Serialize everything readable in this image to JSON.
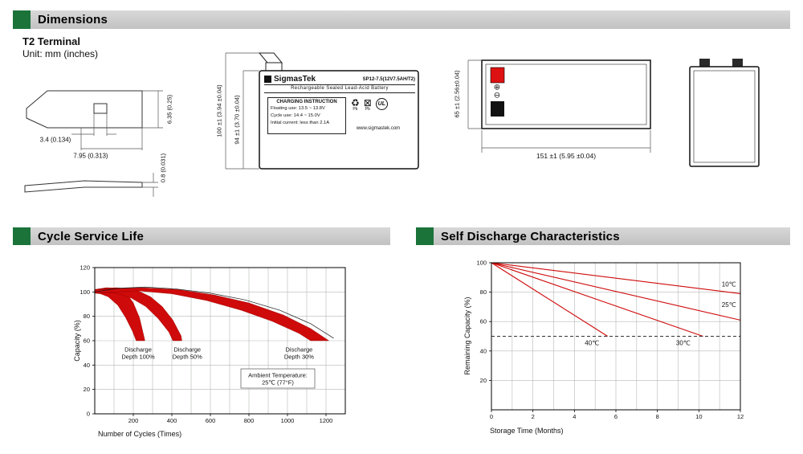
{
  "colors": {
    "accent_green": "#1b733a",
    "header_gray": "#c9c9c9",
    "chart_red": "#cf0a0a",
    "terminal_red": "#dd1111",
    "terminal_black": "#111111"
  },
  "headers": {
    "dimensions": "Dimensions",
    "cycle": "Cycle Service Life",
    "self_discharge": "Self Discharge Characteristics"
  },
  "terminal_drawing": {
    "subtitle": "T2 Terminal",
    "unit": "Unit: mm (inches)",
    "dim_hole": "3.4 (0.134)",
    "dim_tab_width": "7.95 (0.313)",
    "dim_tab_height": "6.35 (0.25)",
    "dim_thickness": "0.8 (0.031)"
  },
  "front_view": {
    "dim_total_height": "100 ±1 (3.94 ±0.04)",
    "dim_case_height": "94 ±1 (3.70 ±0.04)",
    "label": {
      "brand": "SigmasTek",
      "model": "SP12-7.5(12V7.5AH/T2)",
      "battery_type": "Rechargeable Sealed Lead-Acid Battery",
      "charging_title": "CHARGING INSTRUCTION",
      "charging_lines": [
        "Floating use: 13.5 ~ 13.8V",
        "Cycle use: 14.4 ~ 15.0V",
        "Initial current: less than 2.1A"
      ],
      "website": "www.sigmastek.com",
      "pb_label": "Pb",
      "ul_label": "UL",
      "recycle_icon": "♻",
      "bin_icon": "⊠"
    }
  },
  "top_view": {
    "dim_height": "65 ±1 (2.56±0.04)",
    "dim_width": "151 ±1 (5.95 ±0.04)",
    "positive_symbol": "⊕",
    "negative_symbol": "⊖"
  },
  "chart_data": [
    {
      "id": "cycle-life",
      "type": "area",
      "title": "Cycle Service Life",
      "xlabel": "Number of Cycles (Times)",
      "ylabel": "Capacity (%)",
      "xlim": [
        0,
        1300
      ],
      "ylim": [
        0,
        120
      ],
      "xticks": [
        200,
        400,
        600,
        800,
        1000,
        1200
      ],
      "yticks": [
        0,
        20,
        40,
        60,
        80,
        100,
        120
      ],
      "grid": {
        "x_step": 100,
        "y_step": 20
      },
      "band_color": "#cf0a0a",
      "bands": [
        {
          "name": "Discharge Depth 100%",
          "points": [
            [
              0,
              102
            ],
            [
              60,
              103.5
            ],
            [
              120,
              103
            ],
            [
              165,
              99
            ],
            [
              200,
              91
            ],
            [
              232,
              79
            ],
            [
              256,
              63
            ],
            [
              260,
              60
            ],
            [
              215,
              60
            ],
            [
              195,
              68
            ],
            [
              160,
              79
            ],
            [
              120,
              89
            ],
            [
              70,
              96
            ],
            [
              30,
              98.5
            ],
            [
              0,
              99
            ]
          ]
        },
        {
          "name": "Discharge Depth 50%",
          "points": [
            [
              0,
              102
            ],
            [
              110,
              103.5
            ],
            [
              210,
              102
            ],
            [
              290,
              96
            ],
            [
              350,
              88
            ],
            [
              405,
              77
            ],
            [
              448,
              64
            ],
            [
              452,
              60
            ],
            [
              405,
              60
            ],
            [
              385,
              67
            ],
            [
              330,
              78
            ],
            [
              265,
              88
            ],
            [
              190,
              95
            ],
            [
              100,
              99.5
            ],
            [
              0,
              99
            ]
          ]
        },
        {
          "name": "Discharge Depth 30%",
          "points": [
            [
              0,
              102
            ],
            [
              240,
              103.5
            ],
            [
              430,
              102
            ],
            [
              620,
              97.5
            ],
            [
              800,
              91
            ],
            [
              980,
              81
            ],
            [
              1120,
              70
            ],
            [
              1215,
              60
            ],
            [
              1120,
              60
            ],
            [
              1060,
              66
            ],
            [
              920,
              76
            ],
            [
              760,
              85
            ],
            [
              580,
              93
            ],
            [
              400,
              98.5
            ],
            [
              220,
              101
            ],
            [
              0,
              99
            ]
          ]
        }
      ],
      "envelope": [
        [
          0,
          100
        ],
        [
          120,
          103
        ],
        [
          260,
          104
        ],
        [
          420,
          102.5
        ],
        [
          600,
          99
        ],
        [
          780,
          93.5
        ],
        [
          960,
          85
        ],
        [
          1120,
          74
        ],
        [
          1240,
          62
        ]
      ],
      "annotations": [
        {
          "text_lines": [
            "Discharge",
            "Depth 100%"
          ],
          "x": 225,
          "y": 50
        },
        {
          "text_lines": [
            "Discharge",
            "Depth 50%"
          ],
          "x": 480,
          "y": 50
        },
        {
          "text_lines": [
            "Discharge",
            "Depth 30%"
          ],
          "x": 1060,
          "y": 50
        },
        {
          "text_lines": [
            "Ambient Temperature:",
            "25℃ (77°F)"
          ],
          "x": 950,
          "y": 29,
          "box": true
        }
      ]
    },
    {
      "id": "self-discharge",
      "type": "line",
      "title": "Self Discharge Characteristics",
      "xlabel": "Storage Time (Months)",
      "ylabel": "Remaining Capacity (%)",
      "xlim": [
        0,
        12
      ],
      "ylim": [
        0,
        100
      ],
      "xticks": [
        0,
        2,
        4,
        6,
        8,
        10,
        12
      ],
      "yticks": [
        20,
        40,
        60,
        80,
        100
      ],
      "grid": {
        "x_step": 1,
        "y_step": 20
      },
      "line_color": "#cf0a0a",
      "series": [
        {
          "name": "10℃",
          "points": [
            [
              0,
              100
            ],
            [
              12,
              79
            ]
          ],
          "label_at": [
            11.1,
            84
          ]
        },
        {
          "name": "25℃",
          "points": [
            [
              0,
              100
            ],
            [
              12,
              61
            ]
          ],
          "label_at": [
            11.1,
            70
          ]
        },
        {
          "name": "30℃",
          "points": [
            [
              0,
              100
            ],
            [
              10.2,
              50
            ]
          ],
          "label_at": [
            8.9,
            44
          ]
        },
        {
          "name": "40℃",
          "points": [
            [
              0,
              100
            ],
            [
              5.6,
              50
            ]
          ],
          "label_at": [
            4.5,
            44
          ]
        }
      ],
      "dashed_line_y": 50
    }
  ]
}
